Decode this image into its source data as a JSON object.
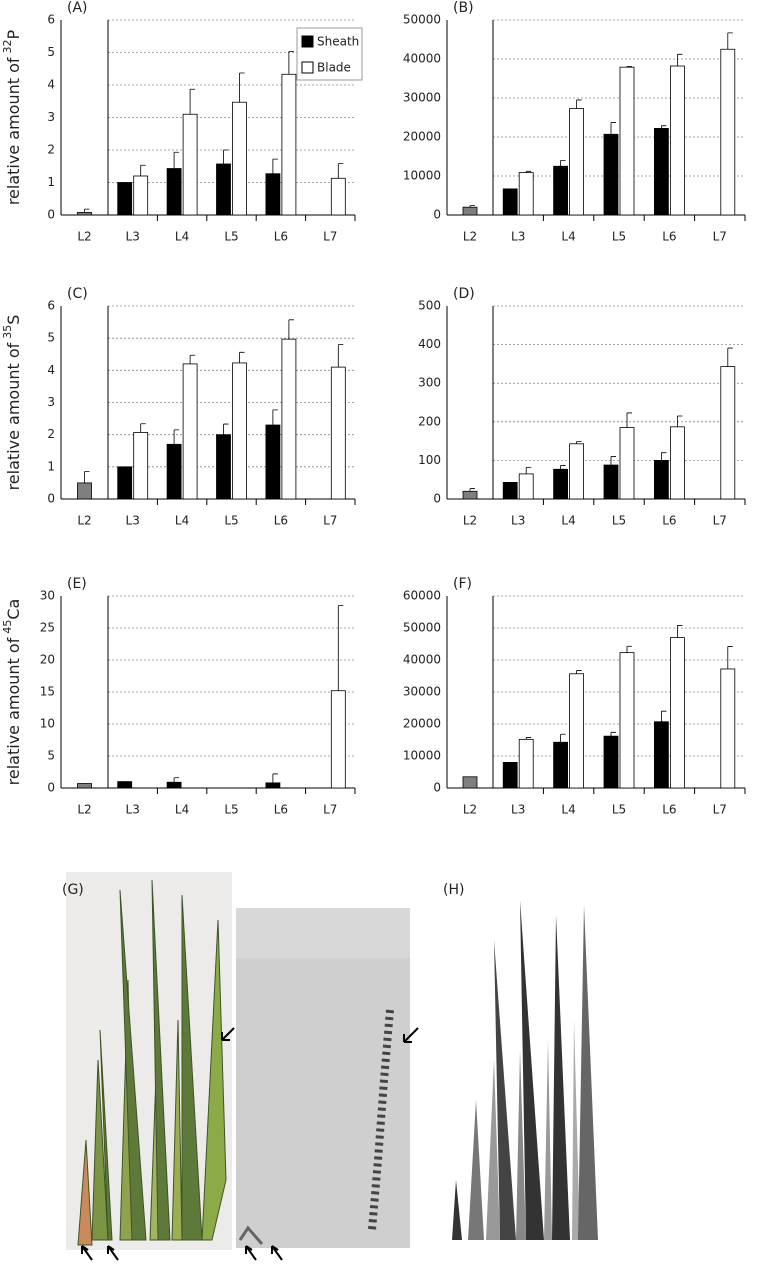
{
  "chart_data": [
    {
      "type": "bar",
      "panel_label": "(A)",
      "ylabel": {
        "text": "relative amount of",
        "mass": "32",
        "element": "P"
      },
      "categories": [
        "L2",
        "L3",
        "L4",
        "L5",
        "L6",
        "L7"
      ],
      "series": [
        {
          "color": "#7f7f7f",
          "values": [
            0.08,
            null,
            null,
            null,
            null,
            null
          ],
          "errors": [
            0.1,
            null,
            null,
            null,
            null,
            null
          ]
        },
        {
          "name": "Sheath",
          "color": "#000000",
          "values": [
            null,
            1.0,
            1.43,
            1.57,
            1.27,
            null
          ],
          "errors": [
            null,
            null,
            0.5,
            0.43,
            0.45,
            null
          ]
        },
        {
          "name": "Blade",
          "color": "#ffffff",
          "values": [
            null,
            1.2,
            3.1,
            3.47,
            4.33,
            1.13
          ],
          "errors": [
            null,
            0.33,
            0.77,
            0.9,
            0.7,
            0.45
          ]
        }
      ],
      "ylim": [
        0,
        6
      ],
      "yticks": [
        0,
        1,
        2,
        3,
        4,
        5,
        6
      ],
      "grid": true,
      "legend": true
    },
    {
      "type": "bar",
      "panel_label": "(B)",
      "categories": [
        "L2",
        "L3",
        "L4",
        "L5",
        "L6",
        "L7"
      ],
      "series": [
        {
          "color": "#7f7f7f",
          "values": [
            2000,
            null,
            null,
            null,
            null,
            null
          ],
          "errors": [
            400,
            null,
            null,
            null,
            null,
            null
          ]
        },
        {
          "name": "Sheath",
          "color": "#000000",
          "values": [
            null,
            6700,
            12500,
            20700,
            22200,
            null
          ],
          "errors": [
            null,
            null,
            1500,
            3000,
            700,
            null
          ]
        },
        {
          "name": "Blade",
          "color": "#ffffff",
          "values": [
            null,
            10900,
            27300,
            37900,
            38200,
            42500
          ],
          "errors": [
            null,
            300,
            2200,
            200,
            3000,
            4200
          ]
        }
      ],
      "ylim": [
        0,
        50000
      ],
      "yticks": [
        0,
        10000,
        20000,
        30000,
        40000,
        50000
      ],
      "grid": true,
      "legend": false
    },
    {
      "type": "bar",
      "panel_label": "(C)",
      "ylabel": {
        "text": "relative amount of",
        "mass": "35",
        "element": "S"
      },
      "categories": [
        "L2",
        "L3",
        "L4",
        "L5",
        "L6",
        "L7"
      ],
      "series": [
        {
          "color": "#7f7f7f",
          "values": [
            0.5,
            null,
            null,
            null,
            null,
            null
          ],
          "errors": [
            0.35,
            null,
            null,
            null,
            null,
            null
          ]
        },
        {
          "name": "Sheath",
          "color": "#000000",
          "values": [
            null,
            1.0,
            1.7,
            2.0,
            2.3,
            null
          ],
          "errors": [
            null,
            null,
            0.45,
            0.33,
            0.47,
            null
          ]
        },
        {
          "name": "Blade",
          "color": "#ffffff",
          "values": [
            null,
            2.07,
            4.2,
            4.23,
            4.97,
            4.1
          ],
          "errors": [
            null,
            0.27,
            0.27,
            0.33,
            0.6,
            0.7
          ]
        }
      ],
      "ylim": [
        0,
        6
      ],
      "yticks": [
        0,
        1,
        2,
        3,
        4,
        5,
        6
      ],
      "grid": true,
      "legend": false
    },
    {
      "type": "bar",
      "panel_label": "(D)",
      "categories": [
        "L2",
        "L3",
        "L4",
        "L5",
        "L6",
        "L7"
      ],
      "series": [
        {
          "color": "#7f7f7f",
          "values": [
            20,
            null,
            null,
            null,
            null,
            null
          ],
          "errors": [
            7,
            null,
            null,
            null,
            null,
            null
          ]
        },
        {
          "name": "Sheath",
          "color": "#000000",
          "values": [
            null,
            43,
            77,
            88,
            100,
            null
          ],
          "errors": [
            null,
            null,
            10,
            22,
            20,
            null
          ]
        },
        {
          "name": "Blade",
          "color": "#ffffff",
          "values": [
            null,
            65,
            143,
            185,
            187,
            343
          ],
          "errors": [
            null,
            17,
            6,
            38,
            28,
            48
          ]
        }
      ],
      "ylim": [
        0,
        500
      ],
      "yticks": [
        0,
        100,
        200,
        300,
        400,
        500
      ],
      "grid": true,
      "legend": false
    },
    {
      "type": "bar",
      "panel_label": "(E)",
      "ylabel": {
        "text": "relative amount of",
        "mass": "45",
        "element": "Ca"
      },
      "categories": [
        "L2",
        "L3",
        "L4",
        "L5",
        "L6",
        "L7"
      ],
      "series": [
        {
          "color": "#7f7f7f",
          "values": [
            0.7,
            null,
            null,
            null,
            null,
            null
          ],
          "errors": [
            null,
            null,
            null,
            null,
            null,
            null
          ]
        },
        {
          "name": "Sheath",
          "color": "#000000",
          "values": [
            null,
            1.0,
            0.9,
            null,
            0.8,
            null
          ],
          "errors": [
            null,
            null,
            0.7,
            null,
            1.4,
            null
          ]
        },
        {
          "name": "Blade",
          "color": "#ffffff",
          "values": [
            null,
            null,
            null,
            null,
            null,
            15.2
          ],
          "errors": [
            null,
            null,
            null,
            null,
            null,
            13.3
          ]
        }
      ],
      "ylim": [
        0,
        30
      ],
      "yticks": [
        0,
        5,
        10,
        15,
        20,
        25,
        30
      ],
      "grid": true,
      "legend": false
    },
    {
      "type": "bar",
      "panel_label": "(F)",
      "categories": [
        "L2",
        "L3",
        "L4",
        "L5",
        "L6",
        "L7"
      ],
      "series": [
        {
          "color": "#7f7f7f",
          "values": [
            3500,
            null,
            null,
            null,
            null,
            null
          ],
          "errors": [
            null,
            null,
            null,
            null,
            null,
            null
          ]
        },
        {
          "name": "Sheath",
          "color": "#000000",
          "values": [
            null,
            8000,
            14300,
            16200,
            20700,
            null
          ],
          "errors": [
            null,
            null,
            2500,
            1200,
            3300,
            null
          ]
        },
        {
          "name": "Blade",
          "color": "#ffffff",
          "values": [
            null,
            15200,
            35700,
            42300,
            47000,
            37200
          ],
          "errors": [
            null,
            600,
            1000,
            2000,
            3800,
            7000
          ]
        }
      ],
      "ylim": [
        0,
        60000
      ],
      "yticks": [
        0,
        10000,
        20000,
        30000,
        40000,
        50000,
        60000
      ],
      "grid": true,
      "legend": false
    }
  ],
  "photo_panels": {
    "g_label": "(G)",
    "h_label": "(H)"
  }
}
